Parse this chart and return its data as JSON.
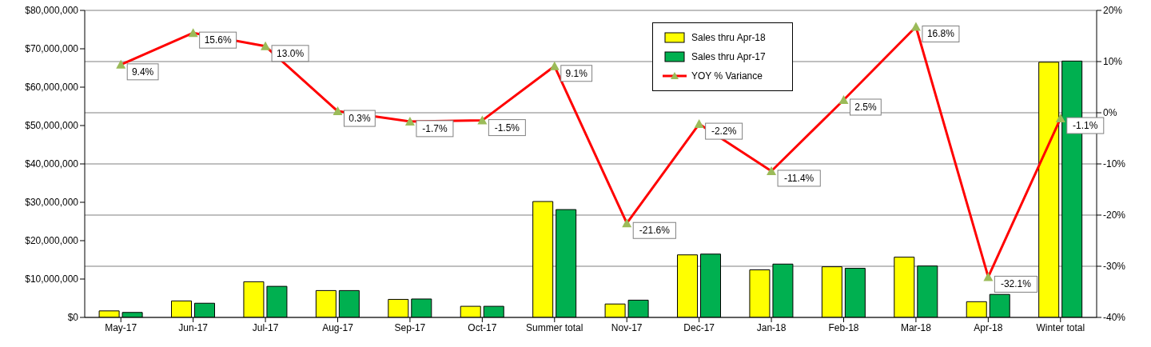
{
  "chart_data": {
    "type": "bar",
    "categories": [
      "May-17",
      "Jun-17",
      "Jul-17",
      "Aug-17",
      "Sep-17",
      "Oct-17",
      "Summer total",
      "Nov-17",
      "Dec-17",
      "Jan-18",
      "Feb-18",
      "Mar-18",
      "Apr-18",
      "Winter total"
    ],
    "series": [
      {
        "name": "Sales thru Apr-18",
        "color": "#ffff00",
        "values": [
          1700000,
          4300000,
          9300000,
          7000000,
          4700000,
          2900000,
          30200000,
          3500000,
          16300000,
          12400000,
          13200000,
          15700000,
          4100000,
          66500000
        ]
      },
      {
        "name": "Sales thru Apr-17",
        "color": "#00b050",
        "values": [
          1300000,
          3700000,
          8100000,
          7000000,
          4800000,
          2900000,
          28100000,
          4500000,
          16500000,
          13900000,
          12800000,
          13400000,
          6000000,
          66800000
        ]
      },
      {
        "name": "YOY % Variance",
        "type": "line",
        "axis": "y2",
        "color": "#ff0000",
        "marker": "triangle",
        "line_style": "solid",
        "values": [
          9.4,
          15.6,
          13.0,
          0.3,
          -1.7,
          -1.5,
          9.1,
          -21.6,
          -2.2,
          -11.4,
          2.5,
          16.8,
          -32.1,
          -1.1
        ],
        "value_labels": [
          "9.4%",
          "15.6%",
          "13.0%",
          "0.3%",
          "-1.7%",
          "-1.5%",
          "9.1%",
          "-21.6%",
          "-2.2%",
          "-11.4%",
          "2.5%",
          "16.8%",
          "-32.1%",
          "-1.1%"
        ]
      }
    ],
    "ylim": [
      0,
      80000000
    ],
    "yticks": [
      {
        "value": 0,
        "label": "$0"
      },
      {
        "value": 10000000,
        "label": "$10,000,000"
      },
      {
        "value": 20000000,
        "label": "$20,000,000"
      },
      {
        "value": 30000000,
        "label": "$30,000,000"
      },
      {
        "value": 40000000,
        "label": "$40,000,000"
      },
      {
        "value": 50000000,
        "label": "$50,000,000"
      },
      {
        "value": 60000000,
        "label": "$60,000,000"
      },
      {
        "value": 70000000,
        "label": "$70,000,000"
      },
      {
        "value": 80000000,
        "label": "$80,000,000"
      }
    ],
    "y2lim": [
      -40,
      20
    ],
    "y2ticks": [
      {
        "value": -40,
        "label": "-40%"
      },
      {
        "value": -30,
        "label": "-30%"
      },
      {
        "value": -20,
        "label": "-20%"
      },
      {
        "value": -10,
        "label": "-10%"
      },
      {
        "value": 0,
        "label": "0%"
      },
      {
        "value": 10,
        "label": "10%"
      },
      {
        "value": 20,
        "label": "20%"
      }
    ],
    "grid": "y2",
    "legend": "top right"
  }
}
